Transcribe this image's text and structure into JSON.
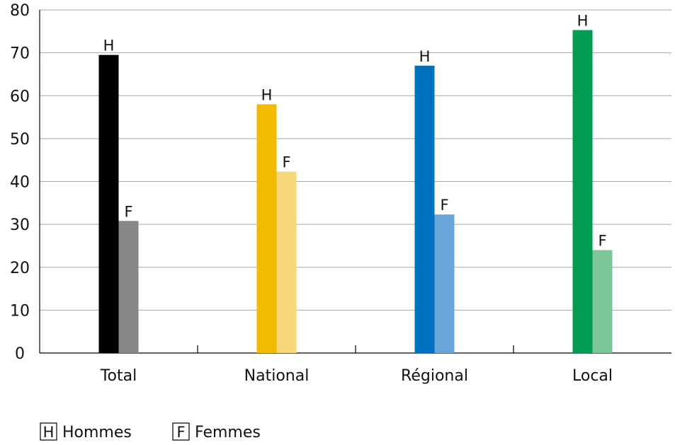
{
  "chart_data": {
    "type": "bar",
    "title": "",
    "xlabel": "",
    "ylabel": "",
    "ylim": [
      0,
      80
    ],
    "yticks": [
      0,
      10,
      20,
      30,
      40,
      50,
      60,
      70,
      80
    ],
    "grid": true,
    "legend_placement": "bottom-left",
    "categories": [
      "Total",
      "National",
      "Régional",
      "Local"
    ],
    "series": [
      {
        "key": "H",
        "name": "Hommes",
        "values": [
          69.5,
          58,
          67,
          75.3
        ],
        "colors": [
          "#000000",
          "#F2BA00",
          "#0070C0",
          "#009C52"
        ]
      },
      {
        "key": "F",
        "name": "Femmes",
        "values": [
          30.8,
          42.3,
          32.3,
          24
        ],
        "colors": [
          "#878787",
          "#F8D67A",
          "#69A5D8",
          "#7BC797"
        ]
      }
    ]
  },
  "legend": [
    {
      "key": "H",
      "label": "Hommes"
    },
    {
      "key": "F",
      "label": "Femmes"
    }
  ]
}
